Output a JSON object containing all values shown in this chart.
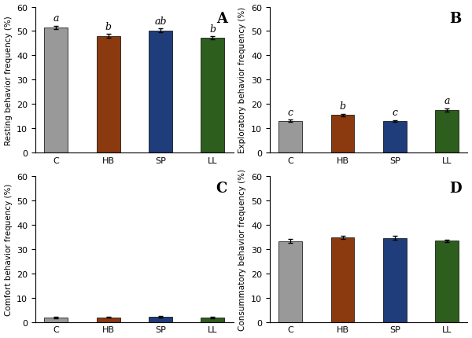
{
  "categories": [
    "C",
    "HB",
    "SP",
    "LL"
  ],
  "colors": [
    "#999999",
    "#8B3A0F",
    "#1F3D7A",
    "#2E5E1E"
  ],
  "panels": {
    "A": {
      "ylabel": "Resting behavior frequency (%)",
      "ylim": [
        0,
        60
      ],
      "yticks": [
        0,
        10,
        20,
        30,
        40,
        50,
        60
      ],
      "values": [
        51.5,
        48.0,
        50.3,
        47.3
      ],
      "errors": [
        0.7,
        0.8,
        0.7,
        0.6
      ],
      "letters": [
        "a",
        "b",
        "ab",
        "b"
      ],
      "panel_label": "A"
    },
    "B": {
      "ylabel": "Exploratory behavior frequency (%)",
      "ylim": [
        0,
        60
      ],
      "yticks": [
        0,
        10,
        20,
        30,
        40,
        50,
        60
      ],
      "values": [
        13.0,
        15.5,
        13.0,
        17.5
      ],
      "errors": [
        0.5,
        0.5,
        0.4,
        0.7
      ],
      "letters": [
        "c",
        "b",
        "c",
        "a"
      ],
      "panel_label": "B"
    },
    "C": {
      "ylabel": "Comfort behavior frequency (%)",
      "ylim": [
        0,
        60
      ],
      "yticks": [
        0,
        10,
        20,
        30,
        40,
        50,
        60
      ],
      "values": [
        1.8,
        1.9,
        2.0,
        1.8
      ],
      "errors": [
        0.3,
        0.2,
        0.3,
        0.2
      ],
      "letters": [
        "",
        "",
        "",
        ""
      ],
      "panel_label": "C"
    },
    "D": {
      "ylabel": "Consummatory behavior frequency (%)",
      "ylim": [
        0,
        60
      ],
      "yticks": [
        0,
        10,
        20,
        30,
        40,
        50,
        60
      ],
      "values": [
        33.3,
        34.8,
        34.6,
        33.4
      ],
      "errors": [
        0.8,
        0.6,
        0.8,
        0.5
      ],
      "letters": [
        "",
        "",
        "",
        ""
      ],
      "panel_label": "D"
    }
  },
  "bar_width": 0.45,
  "background_color": "#ffffff",
  "letter_fontsize": 9,
  "panel_label_fontsize": 13,
  "axis_label_fontsize": 7.5,
  "tick_fontsize": 8
}
